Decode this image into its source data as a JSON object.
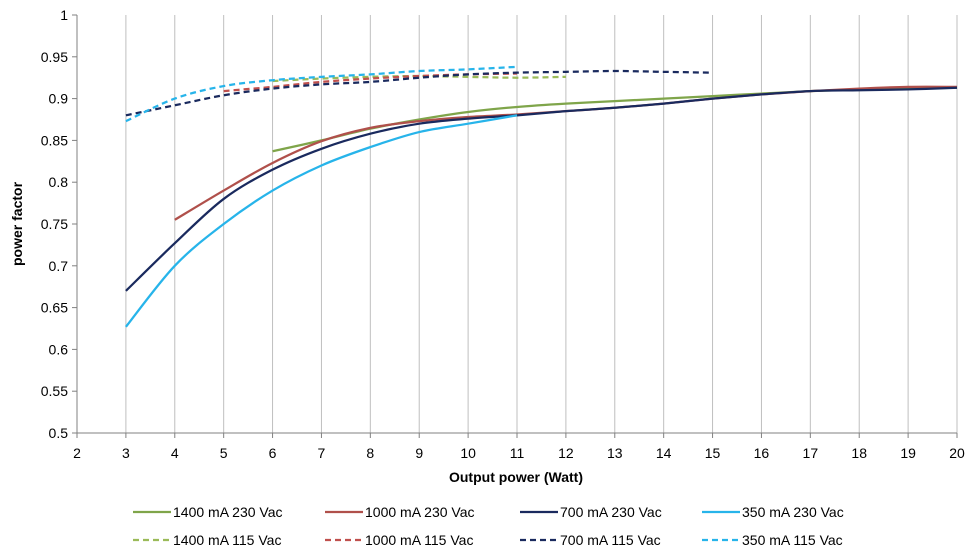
{
  "chart_data": {
    "type": "line",
    "xlabel": "Output power (Watt)",
    "ylabel": "power factor",
    "xlim": [
      2,
      20
    ],
    "ylim": [
      0.5,
      1
    ],
    "x_ticks": [
      "2",
      "3",
      "4",
      "5",
      "6",
      "7",
      "8",
      "9",
      "10",
      "11",
      "12",
      "13",
      "14",
      "15",
      "16",
      "17",
      "18",
      "19",
      "20"
    ],
    "y_ticks": [
      "0.5",
      "0.55",
      "0.6",
      "0.65",
      "0.7",
      "0.75",
      "0.8",
      "0.85",
      "0.9",
      "0.95",
      "1"
    ],
    "grid": "vertical",
    "legend_position": "bottom",
    "series": [
      {
        "name": "1400 mA 230 Vac",
        "color": "#7fa54a",
        "dash": "solid",
        "points": [
          [
            6,
            0.837
          ],
          [
            7,
            0.85
          ],
          [
            8,
            0.864
          ],
          [
            9,
            0.875
          ],
          [
            10,
            0.884
          ],
          [
            11,
            0.89
          ],
          [
            12,
            0.894
          ],
          [
            13,
            0.897
          ],
          [
            14,
            0.9
          ],
          [
            15,
            0.903
          ],
          [
            16,
            0.906
          ],
          [
            17,
            0.909
          ],
          [
            18,
            0.911
          ],
          [
            19,
            0.912
          ],
          [
            20,
            0.913
          ]
        ]
      },
      {
        "name": "1000 mA 230 Vac",
        "color": "#b0504b",
        "dash": "solid",
        "points": [
          [
            4,
            0.755
          ],
          [
            5,
            0.79
          ],
          [
            6,
            0.823
          ],
          [
            7,
            0.849
          ],
          [
            8,
            0.865
          ],
          [
            9,
            0.873
          ],
          [
            10,
            0.878
          ],
          [
            11,
            0.881
          ],
          [
            12,
            0.885
          ],
          [
            13,
            0.889
          ],
          [
            14,
            0.894
          ],
          [
            15,
            0.9
          ],
          [
            16,
            0.905
          ],
          [
            17,
            0.909
          ],
          [
            18,
            0.912
          ],
          [
            19,
            0.914
          ],
          [
            20,
            0.914
          ]
        ]
      },
      {
        "name": "700 mA 230 Vac",
        "color": "#1a2a5e",
        "dash": "solid",
        "points": [
          [
            3,
            0.67
          ],
          [
            4,
            0.727
          ],
          [
            5,
            0.78
          ],
          [
            6,
            0.815
          ],
          [
            7,
            0.84
          ],
          [
            8,
            0.858
          ],
          [
            9,
            0.87
          ],
          [
            10,
            0.876
          ],
          [
            11,
            0.88
          ],
          [
            12,
            0.885
          ],
          [
            13,
            0.889
          ],
          [
            14,
            0.894
          ],
          [
            15,
            0.9
          ],
          [
            16,
            0.905
          ],
          [
            17,
            0.909
          ],
          [
            18,
            0.91
          ],
          [
            19,
            0.911
          ],
          [
            20,
            0.913
          ]
        ]
      },
      {
        "name": "350 mA 230 Vac",
        "color": "#27b4ea",
        "dash": "solid",
        "points": [
          [
            3,
            0.627
          ],
          [
            4,
            0.7
          ],
          [
            5,
            0.75
          ],
          [
            6,
            0.79
          ],
          [
            7,
            0.82
          ],
          [
            8,
            0.842
          ],
          [
            9,
            0.86
          ],
          [
            10,
            0.87
          ],
          [
            11,
            0.88
          ]
        ]
      },
      {
        "name": "1400 mA 115 Vac",
        "color": "#9bbb59",
        "dash": "dashed",
        "points": [
          [
            6,
            0.921
          ],
          [
            7,
            0.924
          ],
          [
            8,
            0.926
          ],
          [
            9,
            0.927
          ],
          [
            10,
            0.926
          ],
          [
            11,
            0.925
          ],
          [
            12,
            0.926
          ]
        ]
      },
      {
        "name": "1000 mA 115 Vac",
        "color": "#c0504d",
        "dash": "dashed",
        "points": [
          [
            5,
            0.909
          ],
          [
            6,
            0.914
          ],
          [
            7,
            0.92
          ],
          [
            8,
            0.924
          ],
          [
            9,
            0.927
          ],
          [
            10,
            0.929
          ],
          [
            11,
            0.93
          ]
        ]
      },
      {
        "name": "700 mA 115 Vac",
        "color": "#1a2a5e",
        "dash": "dashed",
        "points": [
          [
            3,
            0.88
          ],
          [
            4,
            0.892
          ],
          [
            5,
            0.904
          ],
          [
            6,
            0.912
          ],
          [
            7,
            0.917
          ],
          [
            8,
            0.92
          ],
          [
            9,
            0.925
          ],
          [
            10,
            0.929
          ],
          [
            11,
            0.931
          ],
          [
            12,
            0.932
          ],
          [
            13,
            0.933
          ],
          [
            14,
            0.932
          ],
          [
            15,
            0.931
          ]
        ]
      },
      {
        "name": "350 mA 115 Vac",
        "color": "#27b4ea",
        "dash": "dashed",
        "points": [
          [
            3,
            0.873
          ],
          [
            4,
            0.9
          ],
          [
            5,
            0.915
          ],
          [
            6,
            0.922
          ],
          [
            7,
            0.926
          ],
          [
            8,
            0.929
          ],
          [
            9,
            0.933
          ],
          [
            10,
            0.935
          ],
          [
            11,
            0.938
          ]
        ]
      }
    ]
  }
}
